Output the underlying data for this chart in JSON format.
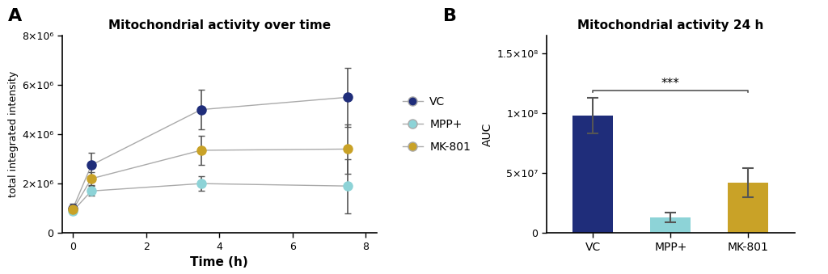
{
  "panel_a_title": "Mitochondrial activity over time",
  "panel_b_title": "Mitochondrial activity 24 h",
  "panel_a_xlabel": "Time (h)",
  "panel_a_ylabel": "total integrated intensity",
  "panel_b_ylabel": "AUC",
  "time_points": [
    0,
    0.5,
    3.5,
    7.5
  ],
  "vc_values": [
    1000000,
    2750000,
    5000000,
    5500000
  ],
  "vc_errors": [
    200000,
    500000,
    800000,
    1200000
  ],
  "mpp_values": [
    900000,
    1700000,
    2000000,
    1900000
  ],
  "mpp_errors": [
    150000,
    200000,
    300000,
    1100000
  ],
  "mk_values": [
    950000,
    2200000,
    3350000,
    3400000
  ],
  "mk_errors": [
    150000,
    250000,
    600000,
    1000000
  ],
  "vc_color": "#1f2d7a",
  "mpp_color": "#8dd3d7",
  "mk_color": "#c9a227",
  "bar_vc_value": 98000000.0,
  "bar_vc_error": 15000000.0,
  "bar_mpp_value": 13000000.0,
  "bar_mpp_error": 4000000.0,
  "bar_mk_value": 42000000.0,
  "bar_mk_error": 12000000.0,
  "bar_categories": [
    "VC",
    "MPP+",
    "MK-801"
  ],
  "bar_colors": [
    "#1f2d7a",
    "#8dd3d7",
    "#c9a227"
  ],
  "ylim_a": [
    0,
    8000000.0
  ],
  "ylim_b": [
    0,
    165000000.0
  ],
  "legend_labels": [
    "VC",
    "MPP+",
    "MK-801"
  ],
  "line_color": "#aaaaaa",
  "background_color": "#ffffff",
  "sig_text": "***"
}
